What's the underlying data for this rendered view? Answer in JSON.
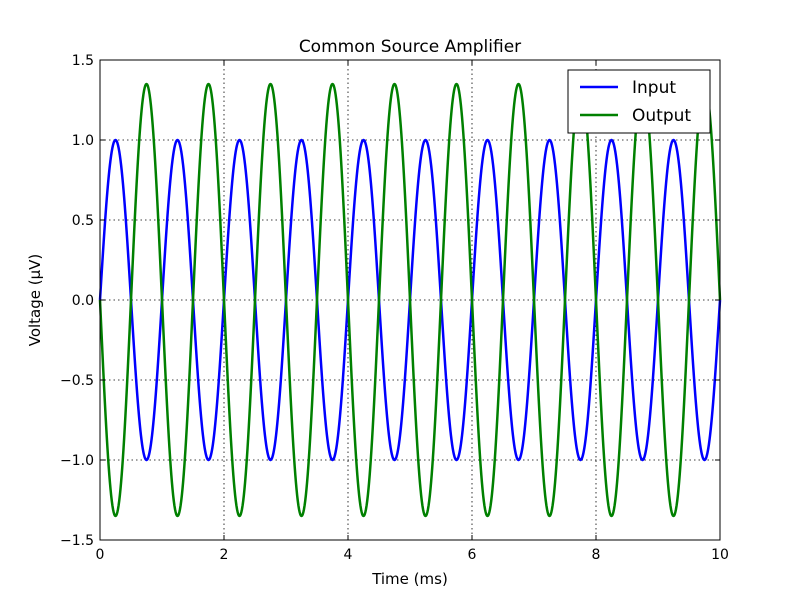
{
  "chart_data": {
    "type": "line",
    "title": "Common Source Amplifier",
    "xlabel": "Time (ms)",
    "ylabel": "Voltage (μV)",
    "xlim": [
      0,
      10
    ],
    "ylim": [
      -1.5,
      1.5
    ],
    "xticks": [
      0,
      2,
      4,
      6,
      8,
      10
    ],
    "xtick_labels": [
      "0",
      "2",
      "4",
      "6",
      "8",
      "10"
    ],
    "yticks": [
      -1.5,
      -1.0,
      -0.5,
      0.0,
      0.5,
      1.0,
      1.5
    ],
    "ytick_labels": [
      "−1.5",
      "−1.0",
      "−0.5",
      "0.0",
      "0.5",
      "1.0",
      "1.5"
    ],
    "grid": true,
    "legend_position": "top-right",
    "series": [
      {
        "name": "Input",
        "color": "#0000ff",
        "amplitude": 1.0,
        "frequency_khz": 1.0,
        "phase_sign": 1,
        "samples": 1000
      },
      {
        "name": "Output",
        "color": "#008000",
        "amplitude": 1.35,
        "frequency_khz": 1.0,
        "phase_sign": -1,
        "samples": 1000
      }
    ]
  }
}
